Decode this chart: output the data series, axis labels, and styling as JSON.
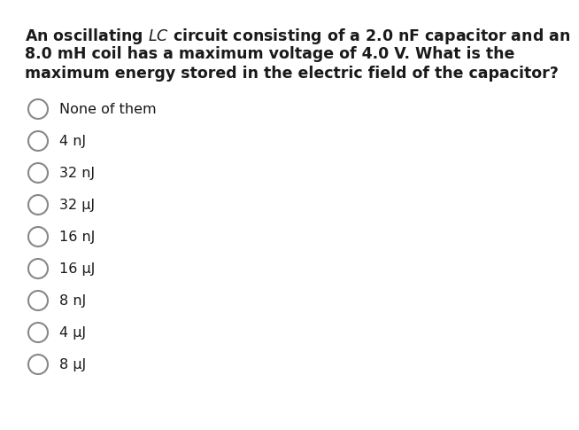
{
  "background_color": "#ffffff",
  "question_lines": [
    "An oscillating $LC$ circuit consisting of a 2.0 nF capacitor and an",
    "8.0 mH coil has a maximum voltage of 4.0 V. What is the",
    "maximum energy stored in the electric field of the capacitor?"
  ],
  "options": [
    "None of them",
    "4 nJ",
    "32 nJ",
    "32 μJ",
    "16 nJ",
    "16 μJ",
    "8 nJ",
    "4 μJ",
    "8 μJ"
  ],
  "question_fontsize": 12.5,
  "option_fontsize": 11.5,
  "text_color": "#1a1a1a",
  "circle_color": "#888888",
  "fig_width": 5.78,
  "fig_height": 4.66
}
